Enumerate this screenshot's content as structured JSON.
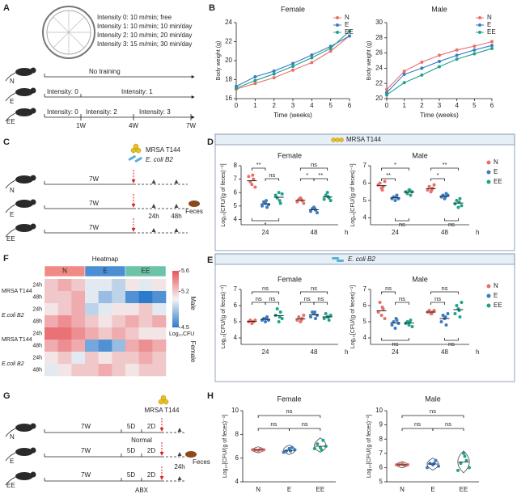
{
  "panels": [
    "A",
    "B",
    "C",
    "D",
    "E",
    "F",
    "G",
    "H"
  ],
  "diagram_a": {
    "intensities": [
      "Intensity 0: 10 m/min; free",
      "Intensity 1: 10 m/min; 10 min/day",
      "Intensity 2: 10 m/min; 20 min/day",
      "Intensity 3: 15 m/min; 30 min/day"
    ],
    "groups": [
      "N",
      "E",
      "EE"
    ],
    "no_training": "No training",
    "labels_e": [
      "Intensity: 0",
      "Intensity: 1"
    ],
    "labels_ee": [
      "Intensity: 0",
      "Intensity: 2",
      "Intensity: 3"
    ],
    "weeks": [
      "1W",
      "4W",
      "7W"
    ]
  },
  "diagram_c": {
    "strains": [
      "MRSA T144",
      "E. coli B2"
    ],
    "groups": [
      "N",
      "E",
      "EE"
    ],
    "duration": "7W",
    "times": [
      "24h",
      "48h"
    ],
    "sample": "Feces"
  },
  "diagram_g": {
    "strain": "MRSA T144",
    "groups": [
      "N",
      "E",
      "EE"
    ],
    "durations": [
      "7W",
      "5D",
      "2D"
    ],
    "conditions": [
      "Normal",
      "ABX"
    ],
    "time": "24h",
    "sample": "Feces"
  },
  "panel_d": {
    "header": "MRSA T144"
  },
  "panel_e": {
    "header": "E. coli B2"
  },
  "chart_data": [
    {
      "type": "line",
      "title": "Female",
      "xlabel": "Time (weeks)",
      "ylabel": "Body weight (g)",
      "x": [
        0,
        1,
        2,
        3,
        4,
        5,
        6
      ],
      "xlim": [
        0,
        6
      ],
      "xticks": [
        0,
        1,
        2,
        3,
        4,
        5,
        6
      ],
      "ylim": [
        16,
        24
      ],
      "yticks": [
        16,
        18,
        20,
        22,
        24
      ],
      "legend": "upper right",
      "series": [
        {
          "name": "N",
          "color": "#e8706a",
          "values": [
            17.0,
            17.6,
            18.2,
            19.0,
            19.8,
            21.0,
            22.6
          ]
        },
        {
          "name": "E",
          "color": "#3a7cc4",
          "values": [
            17.3,
            18.3,
            18.9,
            19.7,
            20.6,
            21.5,
            22.6
          ]
        },
        {
          "name": "EE",
          "color": "#1fa38a",
          "values": [
            17.1,
            17.9,
            18.6,
            19.4,
            20.3,
            21.3,
            23.1
          ]
        }
      ]
    },
    {
      "type": "line",
      "title": "Male",
      "xlabel": "Time (weeks)",
      "ylabel": "Body weight (g)",
      "x": [
        0,
        1,
        2,
        3,
        4,
        5,
        6
      ],
      "xlim": [
        0,
        6
      ],
      "xticks": [
        0,
        1,
        2,
        3,
        4,
        5,
        6
      ],
      "ylim": [
        20,
        30
      ],
      "yticks": [
        20,
        22,
        24,
        26,
        28,
        30
      ],
      "legend": "upper right",
      "series": [
        {
          "name": "N",
          "color": "#e8706a",
          "values": [
            21.2,
            23.6,
            24.8,
            25.7,
            26.4,
            26.9,
            27.5
          ]
        },
        {
          "name": "E",
          "color": "#3a7cc4",
          "values": [
            20.8,
            23.2,
            24.0,
            24.9,
            25.7,
            26.4,
            27.0
          ]
        },
        {
          "name": "EE",
          "color": "#1fa38a",
          "values": [
            20.5,
            22.1,
            23.1,
            24.2,
            25.2,
            25.9,
            26.6
          ]
        }
      ]
    },
    {
      "type": "dot",
      "title": "Female",
      "ylabel": "Log₁₀[CFU/(g of feces)⁻¹]",
      "xlabel": "h",
      "categories": [
        "24",
        "48"
      ],
      "ylim": [
        3.6,
        8
      ],
      "yticks": [
        4,
        5,
        6,
        7,
        8
      ],
      "series": [
        {
          "name": "N",
          "color": "#e8706a",
          "values": [
            [
              7.2,
              6.8,
              6.6,
              7.0,
              6.4,
              7.3
            ],
            [
              5.3,
              5.5,
              5.6,
              5.4,
              5.2,
              5.5
            ]
          ],
          "means": [
            6.88,
            5.42
          ]
        },
        {
          "name": "E",
          "color": "#3a7cc4",
          "values": [
            [
              5.0,
              5.3,
              5.2,
              4.9,
              5.1,
              5.4
            ],
            [
              4.6,
              4.8,
              4.9,
              4.7,
              4.5,
              4.8
            ]
          ],
          "means": [
            5.15,
            4.72
          ]
        },
        {
          "name": "EE",
          "color": "#1fa38a",
          "values": [
            [
              5.8,
              5.6,
              6.0,
              5.2,
              5.9,
              5.4
            ],
            [
              5.5,
              5.8,
              6.0,
              5.6,
              5.4,
              5.7
            ]
          ],
          "means": [
            5.65,
            5.67
          ]
        }
      ],
      "brackets": [
        {
          "label": "**",
          "category": 0,
          "groups": [
            0,
            1
          ]
        },
        {
          "label": "ns",
          "category": 0,
          "groups": [
            1,
            2
          ]
        },
        {
          "label": "*",
          "category": 0,
          "groups": [
            0,
            2
          ],
          "below": true
        },
        {
          "label": "ns",
          "category": 1,
          "groups": [
            0,
            2
          ]
        },
        {
          "label": "*",
          "category": 1,
          "groups": [
            0,
            1
          ]
        },
        {
          "label": "**",
          "category": 1,
          "groups": [
            1,
            2
          ]
        }
      ]
    },
    {
      "type": "dot",
      "title": "Male",
      "ylabel": "Log₁₀[CFU/(g of feces)⁻¹]",
      "xlabel": "h",
      "categories": [
        "24",
        "48"
      ],
      "legend": "right",
      "ylim": [
        3.6,
        7
      ],
      "yticks": [
        4,
        5,
        6,
        7
      ],
      "series": [
        {
          "name": "N",
          "color": "#e8706a",
          "values": [
            [
              5.9,
              6.0,
              5.7,
              5.8,
              6.1,
              5.6
            ],
            [
              5.6,
              5.8,
              5.5,
              5.7,
              5.9,
              5.6
            ]
          ],
          "means": [
            5.85,
            5.68
          ]
        },
        {
          "name": "E",
          "color": "#3a7cc4",
          "values": [
            [
              5.1,
              5.2,
              5.0,
              5.3,
              5.1,
              5.2
            ],
            [
              5.2,
              5.3,
              5.1,
              5.4,
              5.3,
              5.2
            ]
          ],
          "means": [
            5.15,
            5.25
          ]
        },
        {
          "name": "EE",
          "color": "#1fa38a",
          "values": [
            [
              5.5,
              5.4,
              5.6,
              5.3,
              5.5,
              5.6
            ],
            [
              4.8,
              5.0,
              4.6,
              5.1,
              4.7,
              4.9
            ]
          ],
          "means": [
            5.48,
            4.85
          ]
        }
      ],
      "brackets": [
        {
          "label": "*",
          "category": 0,
          "groups": [
            0,
            2
          ]
        },
        {
          "label": "**",
          "category": 0,
          "groups": [
            0,
            1
          ]
        },
        {
          "label": "ns",
          "category": 0,
          "groups": [
            1,
            2
          ],
          "below": true
        },
        {
          "label": "**",
          "category": 1,
          "groups": [
            0,
            2
          ]
        },
        {
          "label": "*",
          "category": 1,
          "groups": [
            0,
            1
          ]
        },
        {
          "label": "ns",
          "category": 1,
          "groups": [
            1,
            2
          ],
          "below": true
        }
      ]
    },
    {
      "type": "dot",
      "title": "Female",
      "ylabel": "Log₁₀[CFU/(g of feces)⁻¹]",
      "xlabel": "h",
      "categories": [
        "24",
        "48"
      ],
      "ylim": [
        3.6,
        7
      ],
      "yticks": [
        4,
        5,
        6,
        7
      ],
      "series": [
        {
          "name": "N",
          "color": "#e8706a",
          "values": [
            [
              5.0,
              5.1,
              4.9,
              5.0,
              5.1,
              5.0
            ],
            [
              5.1,
              5.3,
              5.0,
              5.2,
              5.4,
              5.1
            ]
          ],
          "means": [
            5.02,
            5.18
          ]
        },
        {
          "name": "E",
          "color": "#3a7cc4",
          "values": [
            [
              5.1,
              5.2,
              5.0,
              5.3,
              5.1,
              5.2
            ],
            [
              5.3,
              5.6,
              5.5,
              5.2,
              5.4,
              5.6
            ]
          ],
          "means": [
            5.15,
            5.43
          ]
        },
        {
          "name": "EE",
          "color": "#1fa38a",
          "values": [
            [
              5.4,
              5.8,
              5.0,
              5.6,
              5.2,
              5.3
            ],
            [
              5.2,
              5.5,
              5.3,
              5.1,
              5.4,
              5.3
            ]
          ],
          "means": [
            5.38,
            5.3
          ]
        }
      ],
      "brackets": [
        {
          "label": "ns",
          "category": 0,
          "groups": [
            0,
            2
          ]
        },
        {
          "label": "ns",
          "category": 0,
          "groups": [
            0,
            1
          ]
        },
        {
          "label": "ns",
          "category": 0,
          "groups": [
            1,
            2
          ]
        },
        {
          "label": "ns",
          "category": 1,
          "groups": [
            0,
            2
          ]
        },
        {
          "label": "ns",
          "category": 1,
          "groups": [
            0,
            1
          ]
        },
        {
          "label": "ns",
          "category": 1,
          "groups": [
            1,
            2
          ]
        }
      ]
    },
    {
      "type": "dot",
      "title": "Male",
      "ylabel": "Log₁₀[CFU/(g of feces)⁻¹]",
      "xlabel": "h",
      "categories": [
        "24",
        "48"
      ],
      "legend": "right",
      "ylim": [
        3.6,
        7
      ],
      "yticks": [
        4,
        5,
        6,
        7
      ],
      "series": [
        {
          "name": "N",
          "color": "#e8706a",
          "values": [
            [
              5.6,
              6.2,
              5.4,
              5.8,
              5.2,
              5.9
            ],
            [
              5.6,
              5.7,
              5.5,
              5.6,
              5.7,
              5.5
            ]
          ],
          "means": [
            5.68,
            5.6
          ]
        },
        {
          "name": "E",
          "color": "#3a7cc4",
          "values": [
            [
              4.8,
              5.0,
              4.6,
              5.1,
              4.9,
              5.2
            ],
            [
              5.0,
              5.4,
              5.2,
              4.8,
              5.5,
              5.3
            ]
          ],
          "means": [
            4.93,
            5.2
          ]
        },
        {
          "name": "EE",
          "color": "#1fa38a",
          "values": [
            [
              4.9,
              5.0,
              4.8,
              5.1,
              4.7,
              5.0
            ],
            [
              5.5,
              6.0,
              5.8,
              5.3,
              6.2,
              5.7
            ]
          ],
          "means": [
            4.92,
            5.75
          ]
        }
      ],
      "brackets": [
        {
          "label": "ns",
          "category": 0,
          "groups": [
            0,
            1
          ]
        },
        {
          "label": "ns",
          "category": 0,
          "groups": [
            1,
            2
          ]
        },
        {
          "label": "ns",
          "category": 0,
          "groups": [
            0,
            2
          ],
          "below": true
        },
        {
          "label": "ns",
          "category": 1,
          "groups": [
            0,
            2
          ]
        },
        {
          "label": "ns",
          "category": 1,
          "groups": [
            0,
            1
          ]
        },
        {
          "label": "ns",
          "category": 1,
          "groups": [
            1,
            2
          ],
          "below": true
        }
      ]
    },
    {
      "type": "heatmap",
      "title": "Heatmap",
      "columns": [
        "N",
        "E",
        "EE"
      ],
      "column_colors": [
        "#f08a84",
        "#4a8fd4",
        "#6cc3a8"
      ],
      "row_labels": [
        "24h",
        "48h",
        "24h",
        "48h",
        "24h",
        "48h",
        "24h",
        "48h"
      ],
      "strain_labels": [
        "MRSA T144",
        "E.coli B2",
        "MRSA T144",
        "E.coli B2"
      ],
      "sex_labels": [
        "Male",
        "Female"
      ],
      "zlim": [
        4.5,
        5.6
      ],
      "zticks": [
        5.6,
        5.2,
        4.5
      ],
      "zlabel": "Log₁₀CFU",
      "colors": [
        "#2b7bcc",
        "#f4f4f4",
        "#e8545a"
      ],
      "values": [
        [
          5.2,
          5.3,
          5.2,
          5.0,
          5.0,
          4.9,
          5.1,
          5.0,
          5.1
        ],
        [
          5.2,
          5.2,
          5.3,
          5.0,
          4.8,
          4.9,
          4.6,
          4.5,
          4.6
        ],
        [
          5.1,
          5.2,
          5.3,
          4.9,
          5.0,
          5.1,
          5.1,
          5.2,
          5.0
        ],
        [
          5.3,
          5.4,
          5.3,
          5.2,
          5.1,
          5.2,
          5.3,
          5.2,
          5.3
        ],
        [
          5.5,
          5.5,
          5.4,
          5.3,
          5.2,
          5.3,
          5.2,
          5.1,
          5.1
        ],
        [
          5.3,
          5.4,
          5.3,
          4.7,
          4.6,
          4.8,
          5.3,
          5.4,
          5.3
        ],
        [
          5.1,
          5.2,
          5.0,
          5.2,
          5.1,
          5.2,
          5.2,
          5.3,
          5.2
        ],
        [
          5.0,
          5.1,
          5.2,
          5.2,
          5.3,
          5.2,
          5.1,
          5.2,
          5.2
        ]
      ]
    },
    {
      "type": "violin",
      "title": "Female",
      "ylabel": "Log₁₀[CFU/(g of feces)⁻¹]",
      "categories": [
        "N",
        "E",
        "EE"
      ],
      "colors": [
        "#e8706a",
        "#3a7cc4",
        "#1fa38a"
      ],
      "ylim": [
        4,
        10
      ],
      "yticks": [
        4,
        6,
        8,
        10
      ],
      "values": [
        [
          6.7,
          6.7,
          6.65,
          6.75,
          6.7,
          6.7
        ],
        [
          6.5,
          6.6,
          6.8,
          6.9,
          6.7,
          6.6
        ],
        [
          6.8,
          7.2,
          6.9,
          7.5,
          7.0,
          6.7
        ]
      ],
      "medians": [
        6.7,
        6.65,
        7.0
      ],
      "brackets": [
        {
          "label": "ns",
          "groups": [
            0,
            2
          ]
        },
        {
          "label": "ns",
          "groups": [
            0,
            1
          ]
        },
        {
          "label": "ns",
          "groups": [
            1,
            2
          ]
        }
      ]
    },
    {
      "type": "violin",
      "title": "Male",
      "ylabel": "Log₁₀[CFU/(g of feces)⁻¹]",
      "categories": [
        "N",
        "E",
        "EE"
      ],
      "colors": [
        "#e8706a",
        "#3a7cc4",
        "#1fa38a"
      ],
      "ylim": [
        5,
        10
      ],
      "yticks": [
        5,
        6,
        7,
        8,
        9,
        10
      ],
      "values": [
        [
          6.2,
          6.2,
          6.25,
          6.15,
          6.2,
          6.2
        ],
        [
          6.0,
          6.3,
          6.2,
          6.5,
          6.1,
          6.3
        ],
        [
          5.8,
          6.3,
          7.0,
          6.5,
          6.0,
          6.8
        ]
      ],
      "medians": [
        6.2,
        6.25,
        6.4
      ],
      "brackets": [
        {
          "label": "ns",
          "groups": [
            0,
            2
          ]
        },
        {
          "label": "ns",
          "groups": [
            0,
            1
          ]
        },
        {
          "label": "ns",
          "groups": [
            1,
            2
          ]
        }
      ]
    }
  ]
}
